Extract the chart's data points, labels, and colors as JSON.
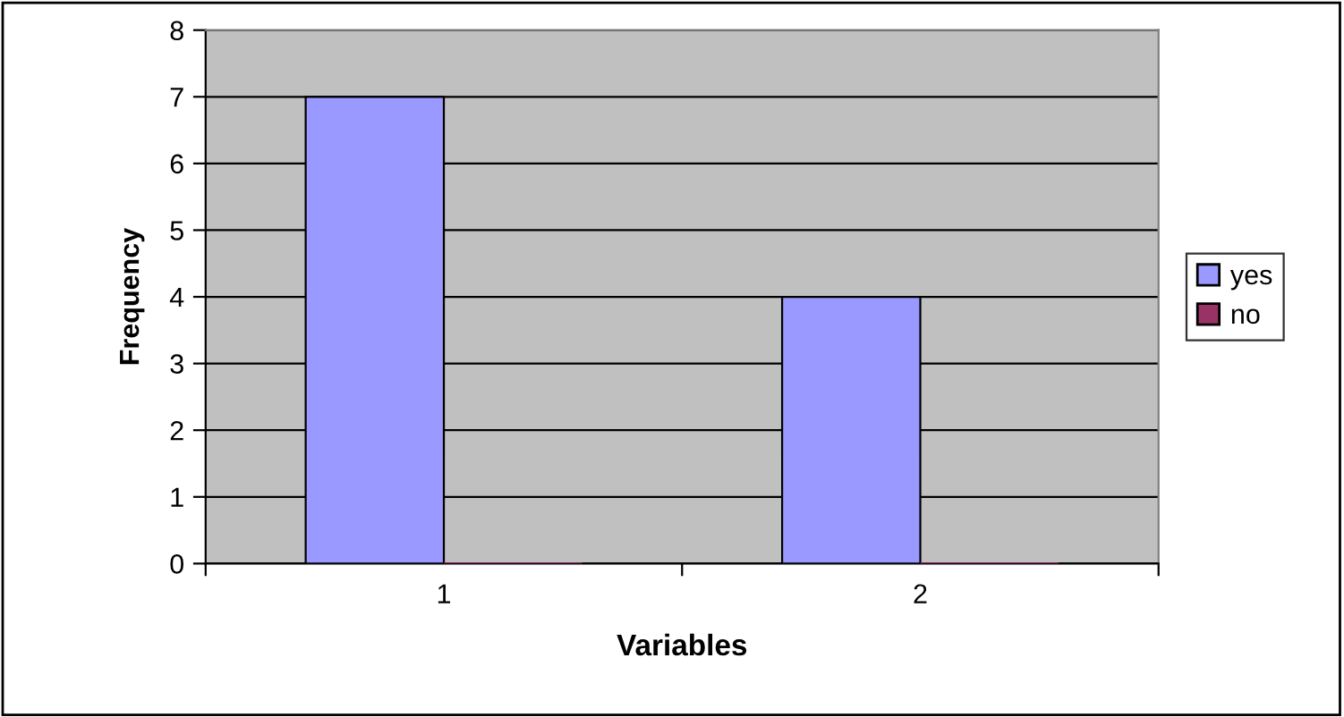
{
  "chart_data": {
    "type": "bar",
    "xlabel": "Variables",
    "ylabel": "Frequency",
    "categories": [
      "1",
      "2"
    ],
    "series": [
      {
        "name": "yes",
        "color": "#9999ff",
        "values": [
          7,
          4
        ]
      },
      {
        "name": "no",
        "color": "#993366",
        "values": [
          0,
          0
        ]
      }
    ],
    "ylim": [
      0,
      8
    ],
    "yticks": [
      0,
      1,
      2,
      3,
      4,
      5,
      6,
      7,
      8
    ],
    "grid": "y",
    "legend": "right"
  }
}
